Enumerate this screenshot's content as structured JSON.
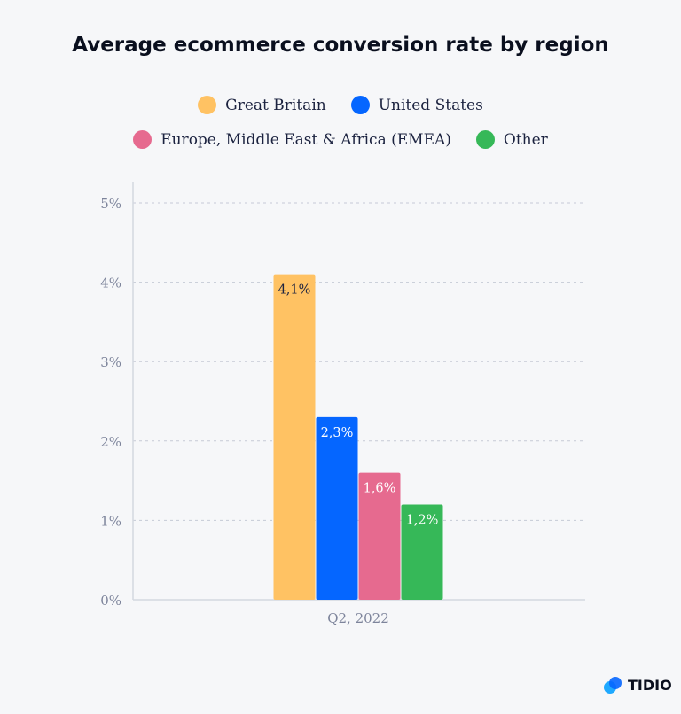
{
  "chart_data": {
    "type": "bar",
    "title": "Average ecommerce conversion rate by region",
    "categories": [
      "Q2, 2022"
    ],
    "series": [
      {
        "name": "Great Britain",
        "values": [
          4.1
        ],
        "label": "4,1%",
        "color": "#ffc263",
        "label_color": "#1c2340"
      },
      {
        "name": "United States",
        "values": [
          2.3
        ],
        "label": "2,3%",
        "color": "#0566ff",
        "label_color": "#ffffff"
      },
      {
        "name": "Europe, Middle East & Africa (EMEA)",
        "values": [
          1.6
        ],
        "label": "1,6%",
        "color": "#e66a8f",
        "label_color": "#ffffff"
      },
      {
        "name": "Other",
        "values": [
          1.2
        ],
        "label": "1,2%",
        "color": "#36b858",
        "label_color": "#ffffff"
      }
    ],
    "ylim": [
      0,
      5
    ],
    "yticks": [
      "0%",
      "1%",
      "2%",
      "3%",
      "4%",
      "5%"
    ],
    "grid": true,
    "legend_placement": "top"
  },
  "brand": {
    "logo_text": "TIDIO"
  }
}
